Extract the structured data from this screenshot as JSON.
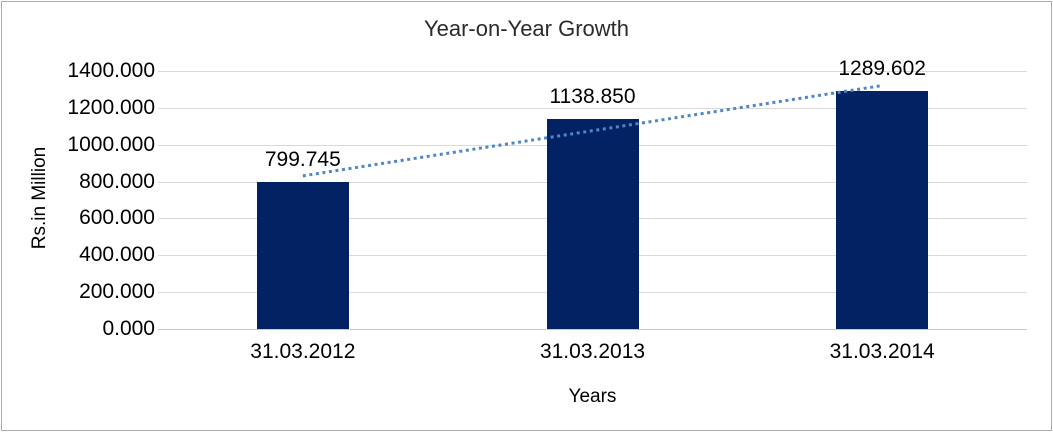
{
  "chart_data": {
    "type": "bar",
    "title": "Year-on-Year Growth",
    "xlabel": "Years",
    "ylabel": "Rs.in Million",
    "categories": [
      "31.03.2012",
      "31.03.2013",
      "31.03.2014"
    ],
    "values": [
      799.745,
      1138.85,
      1289.602
    ],
    "value_labels": [
      "799.745",
      "1138.850",
      "1289.602"
    ],
    "ylim": [
      0,
      1400
    ],
    "ytick_labels": [
      "0.000",
      "200.000",
      "400.000",
      "600.000",
      "800.000",
      "1000.000",
      "1200.000",
      "1400.000"
    ],
    "grid": "horizontal-major",
    "legend": "none",
    "trendline": {
      "type": "linear",
      "style": "dotted"
    },
    "colors": {
      "bar": "#032264",
      "trendline": "#4f86c6",
      "gridline": "#d9d9d9",
      "axis_line": "#c9c9c9",
      "border": "#ababab",
      "text": "#000000"
    }
  }
}
